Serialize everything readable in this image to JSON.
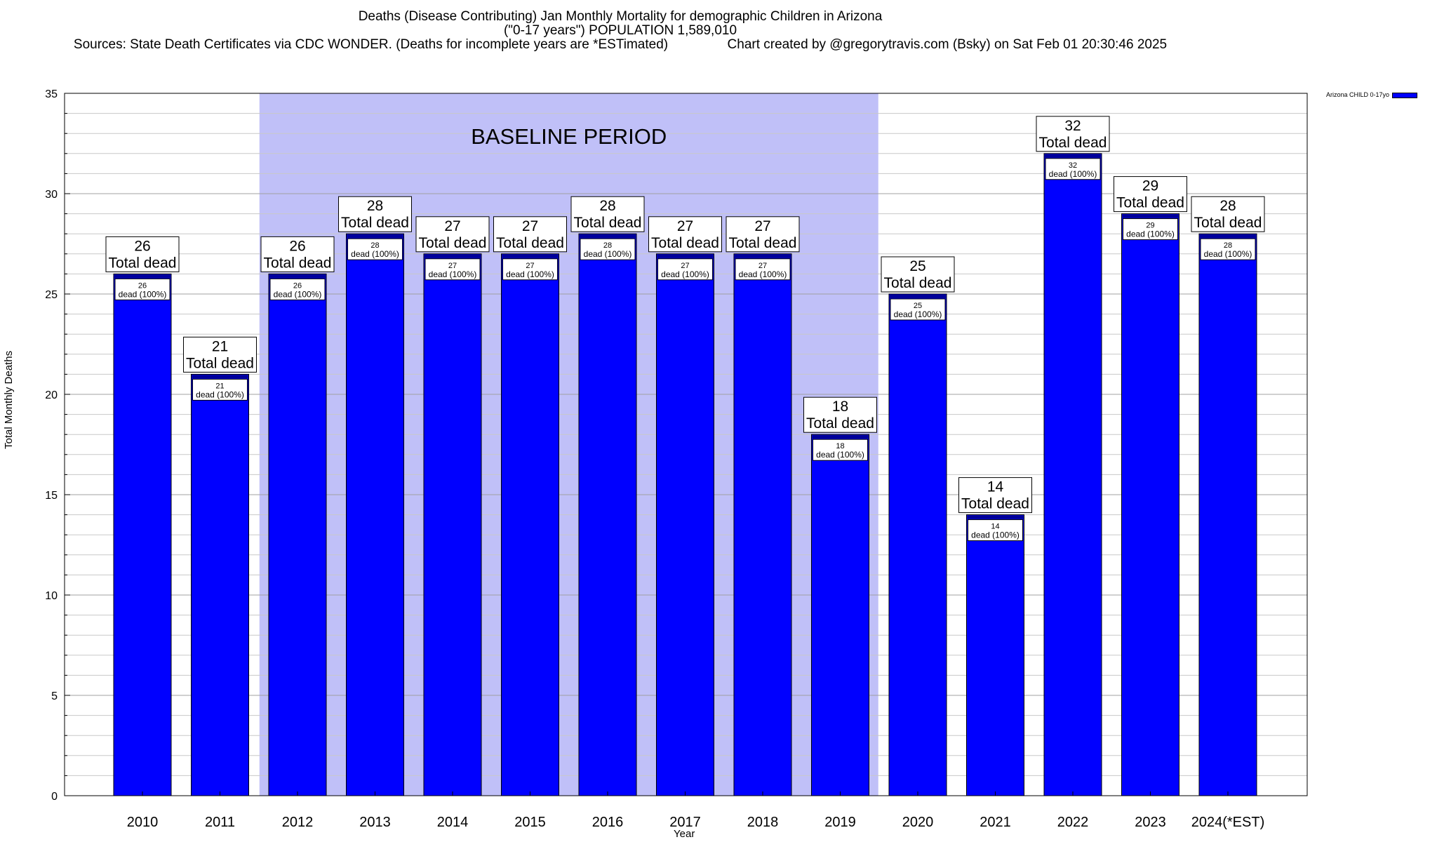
{
  "chart_data": {
    "type": "bar",
    "title_lines": [
      "Deaths (Disease Contributing) Jan Monthly Mortality for demographic Children in Arizona",
      "(\"0-17 years\") POPULATION 1,589,010",
      "Sources: State Death Certificates via CDC WONDER. (Deaths for incomplete years are *ESTimated)                Chart created by @gregorytravis.com (Bsky) on Sat Feb 01 20:30:46 2025"
    ],
    "xlabel": "Year",
    "ylabel": "Total Monthly Deaths",
    "ylim": [
      0,
      35
    ],
    "yticks": [
      0,
      5,
      10,
      15,
      20,
      25,
      30,
      35
    ],
    "categories": [
      "2010",
      "2011",
      "2012",
      "2013",
      "2014",
      "2015",
      "2016",
      "2017",
      "2018",
      "2019",
      "2020",
      "2021",
      "2022",
      "2023",
      "2024(*EST)"
    ],
    "series": [
      {
        "name": "Arizona CHILD 0-17yo",
        "color": "#0000ff",
        "values": [
          26,
          21,
          26,
          28,
          27,
          27,
          28,
          27,
          27,
          18,
          25,
          14,
          32,
          29,
          28
        ]
      }
    ],
    "total_label_suffix": "Total dead",
    "inner_label_suffix": "dead (100%)",
    "baseline": {
      "label": "BASELINE PERIOD",
      "from_category": "2012",
      "to_category": "2019",
      "color": "#c0c0f8"
    },
    "legend_position": "top-right",
    "grid": true
  }
}
